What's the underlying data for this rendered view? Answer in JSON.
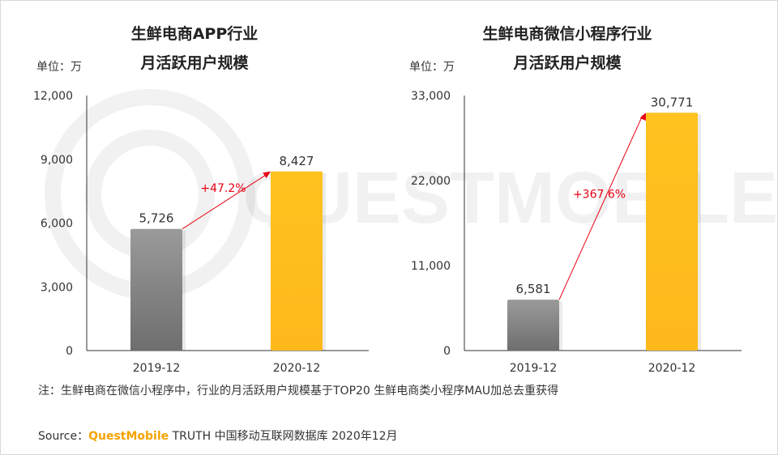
{
  "chart_data": [
    {
      "type": "bar",
      "title_lines": [
        "生鲜电商APP行业",
        "月活跃用户规模"
      ],
      "unit_label": "单位：万",
      "categories": [
        "2019-12",
        "2020-12"
      ],
      "values": [
        5726,
        8427
      ],
      "value_labels": [
        "5,726",
        "8,427"
      ],
      "ylim": [
        0,
        12000
      ],
      "yticks": [
        0,
        3000,
        6000,
        9000,
        12000
      ],
      "ytick_labels": [
        "0",
        "3,000",
        "6,000",
        "9,000",
        "12,000"
      ],
      "growth_label": "+47.2%",
      "colors": [
        "#808080",
        "#ffb81c"
      ]
    },
    {
      "type": "bar",
      "title_lines": [
        "生鲜电商微信小程序行业",
        "月活跃用户规模"
      ],
      "unit_label": "单位：万",
      "categories": [
        "2019-12",
        "2020-12"
      ],
      "values": [
        6581,
        30771
      ],
      "value_labels": [
        "6,581",
        "30,771"
      ],
      "ylim": [
        0,
        33000
      ],
      "yticks": [
        0,
        11000,
        22000,
        33000
      ],
      "ytick_labels": [
        "0",
        "11,000",
        "22,000",
        "33,000"
      ],
      "growth_label": "+367.6%",
      "colors": [
        "#808080",
        "#ffb81c"
      ]
    }
  ],
  "note": "注：生鲜电商在微信小程序中，行业的月活跃用户规模基于TOP20 生鲜电商类小程序MAU加总去重获得",
  "source": {
    "prefix": "Source：",
    "brand": "QuestMobile",
    "rest": " TRUTH 中国移动互联网数据库 2020年12月"
  },
  "watermark_text": "QUESTMOBILE",
  "arrow_color": "#e60012"
}
